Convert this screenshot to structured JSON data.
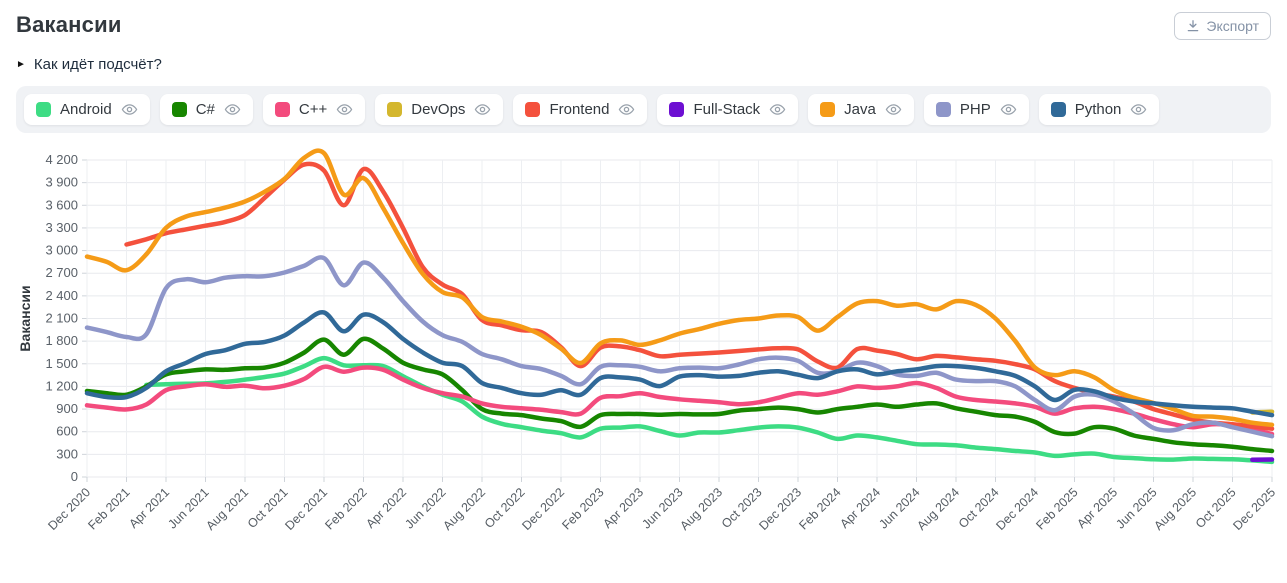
{
  "header": {
    "title": "Вакансии",
    "export_label": "Экспорт"
  },
  "how_counted": {
    "marker": "►",
    "label": "Как идёт подсчёт?"
  },
  "chart_data": {
    "type": "line",
    "ylabel": "Вакансии",
    "ylim": [
      0,
      4200
    ],
    "ytick_step": 300,
    "grid": true,
    "legend_position": "top",
    "x_tick_every": 2,
    "x": [
      "Dec 2020",
      "Jan 2021",
      "Feb 2021",
      "Mar 2021",
      "Apr 2021",
      "May 2021",
      "Jun 2021",
      "Jul 2021",
      "Aug 2021",
      "Sep 2021",
      "Oct 2021",
      "Nov 2021",
      "Dec 2021",
      "Jan 2022",
      "Feb 2022",
      "Mar 2022",
      "Apr 2022",
      "May 2022",
      "Jun 2022",
      "Jul 2022",
      "Aug 2022",
      "Sep 2022",
      "Oct 2022",
      "Nov 2022",
      "Dec 2022",
      "Jan 2023",
      "Feb 2023",
      "Mar 2023",
      "Apr 2023",
      "May 2023",
      "Jun 2023",
      "Jul 2023",
      "Aug 2023",
      "Sep 2023",
      "Oct 2023",
      "Nov 2023",
      "Dec 2023",
      "Jan 2024",
      "Feb 2024",
      "Mar 2024",
      "Apr 2024",
      "May 2024",
      "Jun 2024",
      "Jul 2024",
      "Aug 2024",
      "Sep 2024",
      "Oct 2024",
      "Nov 2024",
      "Dec 2024",
      "Jan 2025",
      "Feb 2025",
      "Mar 2025",
      "Apr 2025",
      "May 2025",
      "Jun 2025",
      "Jul 2025",
      "Aug 2025",
      "Sep 2025",
      "Oct 2025",
      "Nov 2025",
      "Dec 2025"
    ],
    "series": [
      {
        "name": "Android",
        "color": "#3ddc84",
        "values": [
          null,
          null,
          null,
          1220,
          1230,
          1235,
          1240,
          1260,
          1290,
          1325,
          1370,
          1470,
          1575,
          1480,
          1480,
          1470,
          1335,
          1200,
          1090,
          1000,
          800,
          705,
          660,
          615,
          580,
          525,
          640,
          655,
          670,
          610,
          550,
          590,
          590,
          620,
          655,
          670,
          655,
          590,
          505,
          550,
          525,
          480,
          435,
          430,
          420,
          390,
          370,
          345,
          325,
          280,
          300,
          310,
          265,
          250,
          235,
          230,
          245,
          240,
          235,
          220,
          200
        ]
      },
      {
        "name": "C#",
        "color": "#178600",
        "values": [
          1140,
          1110,
          1090,
          1200,
          1360,
          1400,
          1425,
          1420,
          1440,
          1450,
          1515,
          1650,
          1820,
          1620,
          1830,
          1700,
          1515,
          1425,
          1360,
          1150,
          900,
          840,
          820,
          775,
          740,
          665,
          820,
          835,
          835,
          825,
          835,
          830,
          835,
          880,
          900,
          920,
          900,
          855,
          900,
          930,
          960,
          930,
          960,
          975,
          910,
          865,
          820,
          800,
          730,
          595,
          575,
          660,
          640,
          550,
          505,
          460,
          435,
          420,
          400,
          370,
          345
        ]
      },
      {
        "name": "C++",
        "color": "#f34b7d",
        "values": [
          950,
          920,
          895,
          960,
          1150,
          1200,
          1230,
          1195,
          1210,
          1175,
          1210,
          1300,
          1460,
          1395,
          1450,
          1420,
          1290,
          1180,
          1110,
          1065,
          975,
          930,
          910,
          890,
          860,
          840,
          1050,
          1070,
          1110,
          1060,
          1030,
          1010,
          990,
          965,
          990,
          1050,
          1110,
          1090,
          1135,
          1200,
          1180,
          1200,
          1245,
          1180,
          1065,
          1020,
          1000,
          975,
          930,
          840,
          910,
          930,
          900,
          840,
          765,
          700,
          660,
          700,
          685,
          630,
          570
        ]
      },
      {
        "name": "DevOps",
        "color": "#d4b72e",
        "values": [
          null,
          null,
          null,
          null,
          null,
          null,
          null,
          null,
          null,
          null,
          null,
          null,
          null,
          null,
          null,
          null,
          null,
          null,
          null,
          null,
          null,
          null,
          null,
          null,
          null,
          null,
          null,
          null,
          null,
          null,
          null,
          null,
          null,
          null,
          null,
          null,
          null,
          null,
          null,
          null,
          null,
          null,
          null,
          null,
          null,
          null,
          null,
          null,
          null,
          null,
          null,
          null,
          null,
          null,
          null,
          null,
          null,
          null,
          null,
          855,
          865
        ]
      },
      {
        "name": "Frontend",
        "color": "#f4513d",
        "values": [
          null,
          null,
          3080,
          3150,
          3230,
          3280,
          3330,
          3380,
          3470,
          3700,
          3940,
          4140,
          4060,
          3600,
          4080,
          3780,
          3300,
          2780,
          2550,
          2420,
          2080,
          2010,
          1945,
          1920,
          1720,
          1470,
          1715,
          1730,
          1680,
          1600,
          1620,
          1635,
          1650,
          1670,
          1690,
          1705,
          1690,
          1530,
          1450,
          1695,
          1675,
          1630,
          1560,
          1605,
          1585,
          1560,
          1540,
          1495,
          1425,
          1270,
          1180,
          1110,
          1065,
          1000,
          900,
          830,
          760,
          720,
          700,
          670,
          640
        ]
      },
      {
        "name": "Full-Stack",
        "color": "#6d0fd2",
        "values": [
          null,
          null,
          null,
          null,
          null,
          null,
          null,
          null,
          null,
          null,
          null,
          null,
          null,
          null,
          null,
          null,
          null,
          null,
          null,
          null,
          null,
          null,
          null,
          null,
          null,
          null,
          null,
          null,
          null,
          null,
          null,
          null,
          null,
          null,
          null,
          null,
          null,
          null,
          null,
          null,
          null,
          null,
          null,
          null,
          null,
          null,
          null,
          null,
          null,
          null,
          null,
          null,
          null,
          null,
          null,
          null,
          null,
          null,
          null,
          228,
          232
        ]
      },
      {
        "name": "Java",
        "color": "#f59b17",
        "values": [
          2920,
          2850,
          2740,
          2950,
          3300,
          3450,
          3510,
          3570,
          3650,
          3780,
          3950,
          4230,
          4290,
          3740,
          3960,
          3560,
          3100,
          2690,
          2450,
          2380,
          2120,
          2060,
          1990,
          1880,
          1700,
          1510,
          1770,
          1810,
          1750,
          1810,
          1900,
          1960,
          2030,
          2080,
          2100,
          2140,
          2120,
          1940,
          2120,
          2300,
          2330,
          2270,
          2290,
          2220,
          2330,
          2280,
          2100,
          1800,
          1450,
          1350,
          1400,
          1320,
          1150,
          1050,
          980,
          900,
          810,
          800,
          770,
          720,
          690
        ]
      },
      {
        "name": "PHP",
        "color": "#8e96c9",
        "values": [
          1980,
          1920,
          1855,
          1890,
          2500,
          2620,
          2580,
          2640,
          2660,
          2660,
          2710,
          2800,
          2900,
          2540,
          2840,
          2640,
          2330,
          2060,
          1880,
          1790,
          1630,
          1560,
          1470,
          1430,
          1340,
          1230,
          1460,
          1480,
          1460,
          1400,
          1440,
          1450,
          1440,
          1490,
          1560,
          1580,
          1540,
          1380,
          1400,
          1515,
          1470,
          1360,
          1340,
          1380,
          1290,
          1270,
          1270,
          1200,
          1020,
          885,
          1065,
          1090,
          1000,
          840,
          650,
          620,
          700,
          720,
          660,
          600,
          540
        ]
      },
      {
        "name": "Python",
        "color": "#306998",
        "values": [
          1110,
          1060,
          1060,
          1180,
          1400,
          1510,
          1630,
          1680,
          1765,
          1790,
          1875,
          2050,
          2180,
          1930,
          2150,
          2050,
          1830,
          1650,
          1515,
          1470,
          1245,
          1180,
          1110,
          1090,
          1150,
          1090,
          1310,
          1320,
          1290,
          1205,
          1330,
          1350,
          1330,
          1340,
          1380,
          1400,
          1355,
          1310,
          1400,
          1425,
          1360,
          1400,
          1425,
          1470,
          1470,
          1445,
          1400,
          1340,
          1200,
          1020,
          1155,
          1135,
          1050,
          1000,
          975,
          950,
          930,
          920,
          910,
          865,
          820
        ]
      }
    ]
  }
}
